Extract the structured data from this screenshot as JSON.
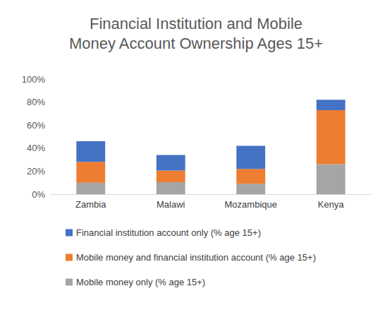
{
  "chart_data": {
    "type": "bar",
    "title": "Financial Institution and Mobile\nMoney Account Ownership Ages 15+",
    "categories": [
      "Zambia",
      "Malawi",
      "Mozambique",
      "Kenya"
    ],
    "stacked": true,
    "series": [
      {
        "name": "Mobile money only (% age 15+)",
        "color": "#a5a5a5",
        "values": [
          10,
          10.5,
          9,
          26
        ]
      },
      {
        "name": "Mobile money and financial institution account (% age 15+)",
        "color": "#ed7d31",
        "values": [
          18,
          10,
          13,
          47
        ]
      },
      {
        "name": "Financial institution account only (% age 15+)",
        "color": "#4472c4",
        "values": [
          18,
          13.5,
          20,
          9
        ]
      }
    ],
    "ylim": [
      0,
      100
    ],
    "yticks": [
      {
        "value": 0,
        "label": "0%"
      },
      {
        "value": 20,
        "label": "20%"
      },
      {
        "value": 40,
        "label": "40%"
      },
      {
        "value": 60,
        "label": "60%"
      },
      {
        "value": 80,
        "label": "80%"
      },
      {
        "value": 100,
        "label": "100%"
      }
    ],
    "grid": false,
    "legend": "bottom"
  }
}
